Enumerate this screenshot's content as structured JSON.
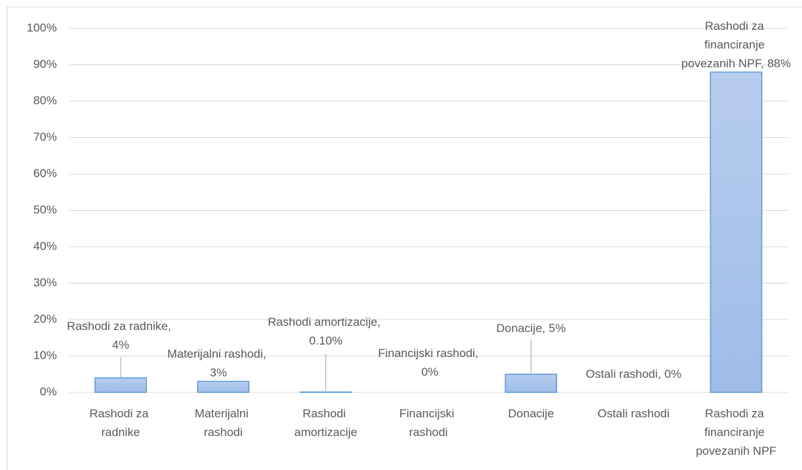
{
  "chart_data": {
    "type": "bar",
    "categories": [
      "Rashodi za radnike",
      "Materijalni rashodi",
      "Rashodi amortizacije",
      "Financijski rashodi",
      "Donacije",
      "Ostali rashodi",
      "Rashodi za financiranje povezanih NPF"
    ],
    "values": [
      4,
      3,
      0.1,
      0,
      5,
      0,
      88
    ],
    "value_labels": [
      "Rashodi za radnike, 4%",
      "Materijalni rashodi, 3%",
      "Rashodi amortizacije, 0.10%",
      "Financijski rashodi, 0%",
      "Donacije, 5%",
      "Ostali rashodi, 0%",
      "Rashodi za financiranje povezanih NPF, 88%"
    ],
    "color": "#9dbde8",
    "ylim": [
      0,
      100
    ],
    "yticks": [
      {
        "value": 0,
        "label": "0%"
      },
      {
        "value": 10,
        "label": "10%"
      },
      {
        "value": 20,
        "label": "20%"
      },
      {
        "value": 30,
        "label": "30%"
      },
      {
        "value": 40,
        "label": "40%"
      },
      {
        "value": 50,
        "label": "50%"
      },
      {
        "value": 60,
        "label": "60%"
      },
      {
        "value": 70,
        "label": "70%"
      },
      {
        "value": 80,
        "label": "80%"
      },
      {
        "value": 90,
        "label": "90%"
      },
      {
        "value": 100,
        "label": "100%"
      }
    ],
    "grid": true
  }
}
